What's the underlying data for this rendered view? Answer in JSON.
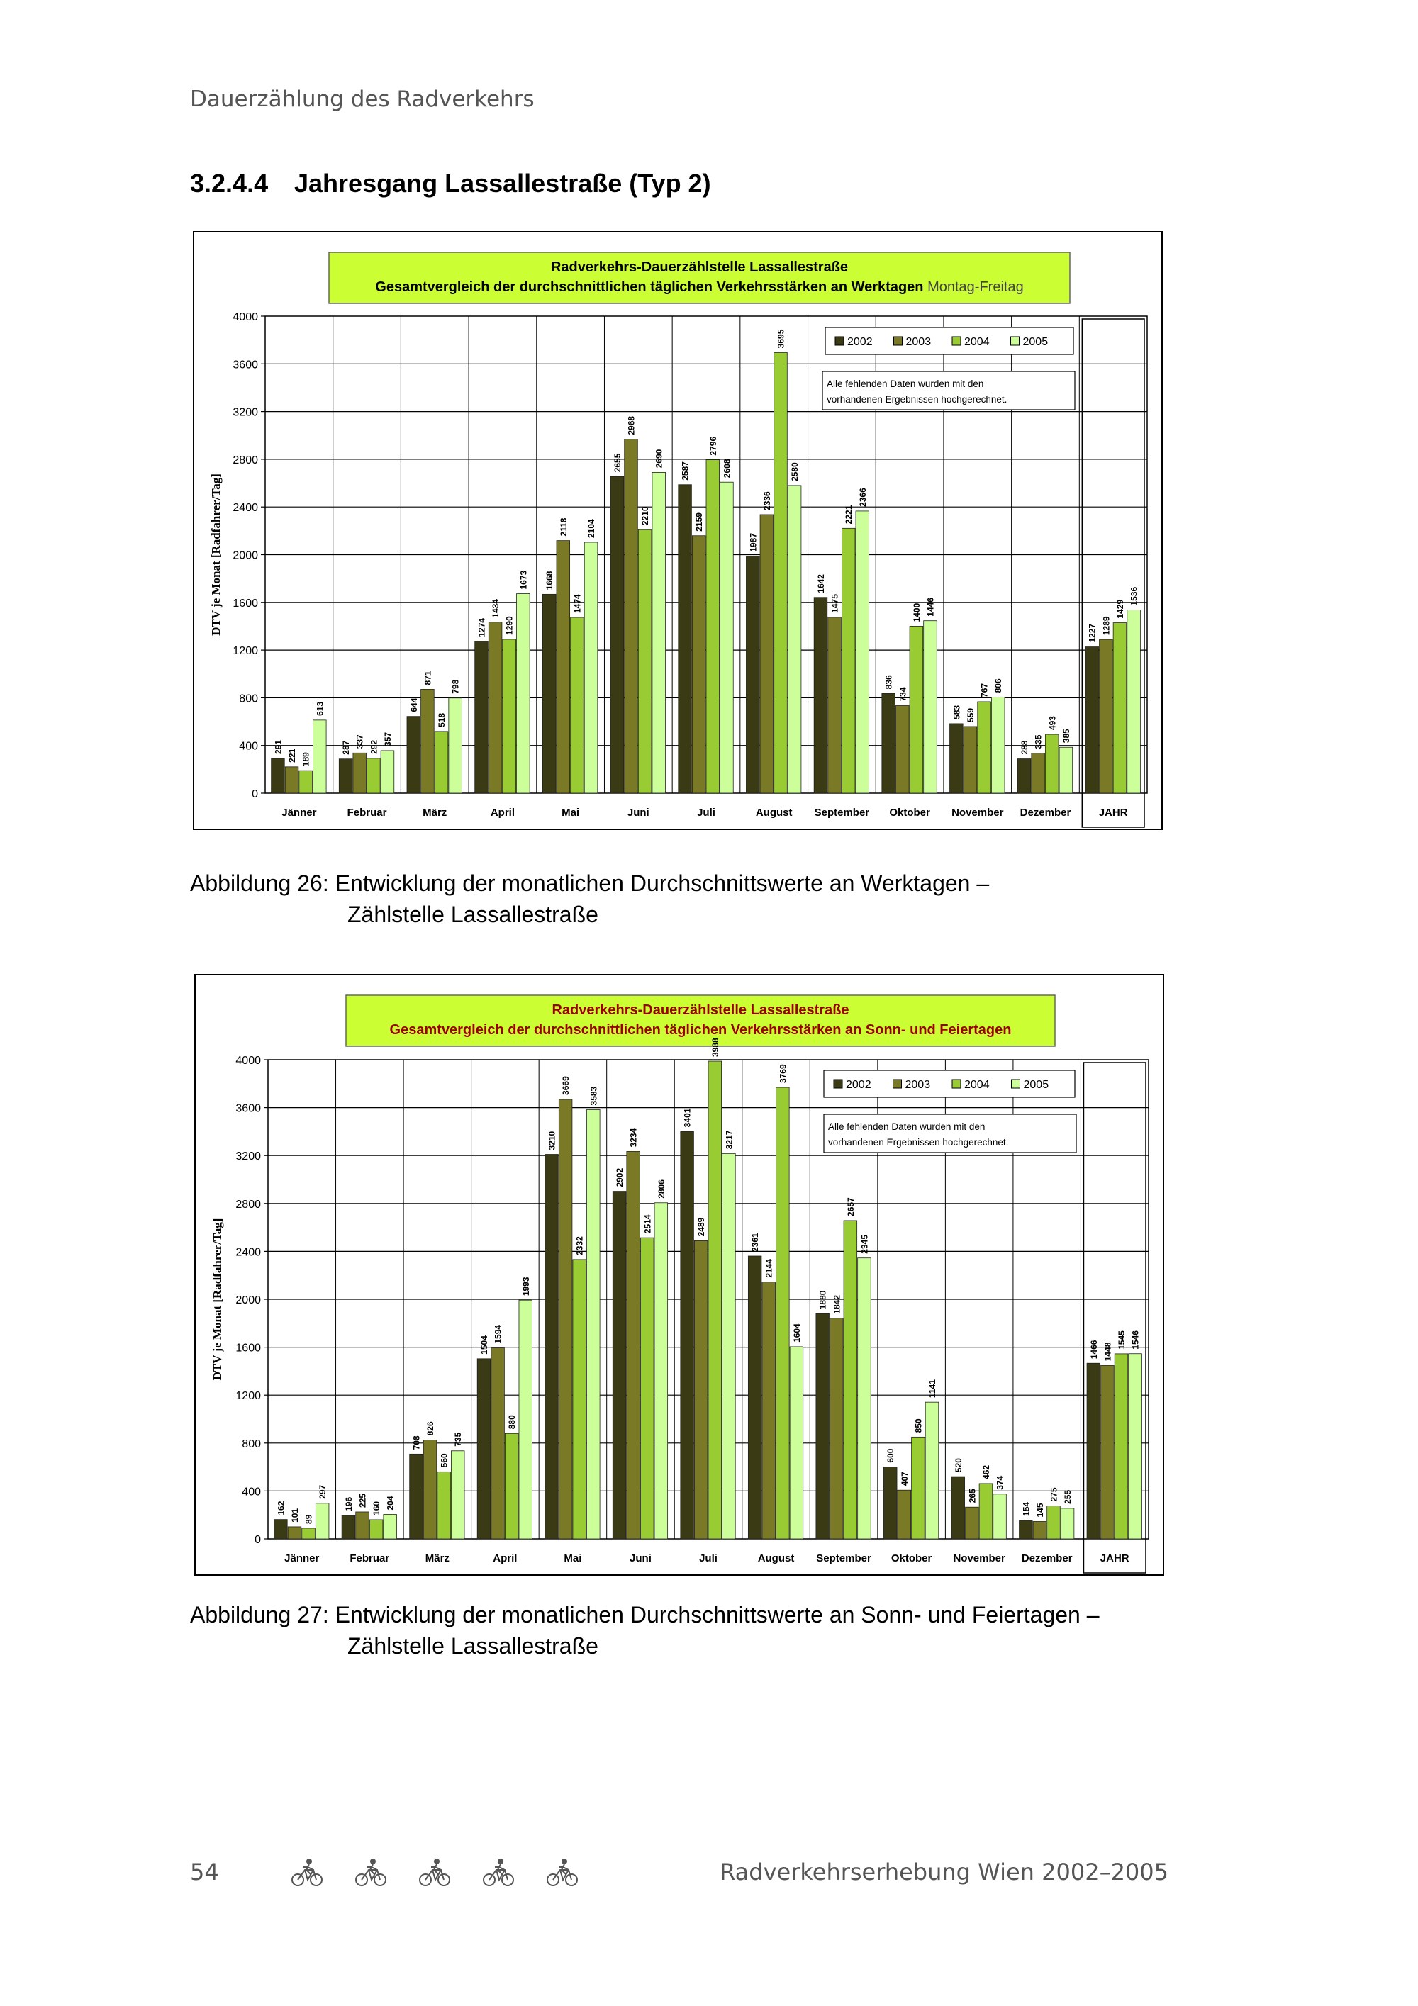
{
  "page": {
    "running_header": "Dauerzählung des Radverkehrs",
    "section_number": "3.2.4.4",
    "section_title": "Jahresgang Lassallestraße (Typ 2)",
    "page_number": "54",
    "footer_title": "Radverkehrserhebung Wien 2002–2005",
    "footer_icon": "bicycle-icon"
  },
  "captions": [
    {
      "line1": "Abbildung 26: Entwicklung der monatlichen Durchschnittswerte an Werktagen –",
      "line2": "Zählstelle Lassallestraße"
    },
    {
      "line1": "Abbildung 27: Entwicklung der monatlichen Durchschnittswerte an Sonn- und Feiertagen –",
      "line2": "Zählstelle Lassallestraße"
    }
  ],
  "colors": {
    "s2002": "#3a3a14",
    "s2003": "#7a7a26",
    "s2004": "#99cc33",
    "s2005": "#ccff99",
    "title_box": "#ccff33",
    "title_text_1": "#000000",
    "title_text_2": "#990000"
  },
  "chart_data": [
    {
      "type": "bar",
      "title": "Radverkehrs-Dauerzählstelle Lassallestraße",
      "subtitle": "Gesamtvergleich der durchschnittlichen täglichen Verkehrsstärken an Werktagen",
      "subtitle_suffix": "Montag-Freitag",
      "ylabel": "DTV je Monat  [Radfahrer/Tag]",
      "ylim": [
        0,
        4000
      ],
      "yticks": [
        0,
        400,
        800,
        1200,
        1600,
        2000,
        2400,
        2800,
        3200,
        3600,
        4000
      ],
      "grid": true,
      "legend_position": "top-right",
      "note": "Alle fehlenden Daten wurden mit den vorhandenen Ergebnissen hochgerechnet.",
      "categories": [
        "Jänner",
        "Februar",
        "März",
        "April",
        "Mai",
        "Juni",
        "Juli",
        "August",
        "September",
        "Oktober",
        "November",
        "Dezember",
        "JAHR"
      ],
      "series": [
        {
          "name": "2002",
          "values": [
            291,
            287,
            644,
            1274,
            1668,
            2655,
            2587,
            1987,
            1642,
            836,
            583,
            288,
            1227
          ]
        },
        {
          "name": "2003",
          "values": [
            221,
            337,
            871,
            1434,
            2118,
            2968,
            2159,
            2336,
            1475,
            734,
            559,
            335,
            1289
          ]
        },
        {
          "name": "2004",
          "values": [
            189,
            292,
            518,
            1290,
            1474,
            2210,
            2796,
            3695,
            2221,
            1400,
            767,
            493,
            1429
          ]
        },
        {
          "name": "2005",
          "values": [
            613,
            357,
            798,
            1673,
            2104,
            2690,
            2608,
            2580,
            2366,
            1446,
            806,
            385,
            1536
          ]
        }
      ]
    },
    {
      "type": "bar",
      "title": "Radverkehrs-Dauerzählstelle Lassallestraße",
      "subtitle": "Gesamtvergleich der durchschnittlichen täglichen Verkehrsstärken an Sonn- und Feiertagen",
      "subtitle_suffix": "",
      "ylabel": "DTV je Monat  [Radfahrer/Tag]",
      "ylim": [
        0,
        4000
      ],
      "yticks": [
        0,
        400,
        800,
        1200,
        1600,
        2000,
        2400,
        2800,
        3200,
        3600,
        4000
      ],
      "grid": true,
      "legend_position": "top-right",
      "note": "Alle fehlenden Daten wurden mit den vorhandenen Ergebnissen hochgerechnet.",
      "categories": [
        "Jänner",
        "Februar",
        "März",
        "April",
        "Mai",
        "Juni",
        "Juli",
        "August",
        "September",
        "Oktober",
        "November",
        "Dezember",
        "JAHR"
      ],
      "series": [
        {
          "name": "2002",
          "values": [
            162,
            196,
            708,
            1504,
            3210,
            2902,
            3401,
            2361,
            1880,
            600,
            520,
            154,
            1466
          ]
        },
        {
          "name": "2003",
          "values": [
            101,
            225,
            826,
            1594,
            3669,
            3234,
            2489,
            2144,
            1842,
            407,
            265,
            145,
            1448
          ]
        },
        {
          "name": "2004",
          "values": [
            89,
            160,
            560,
            880,
            2332,
            2514,
            3988,
            3769,
            2657,
            850,
            462,
            275,
            1545
          ]
        },
        {
          "name": "2005",
          "values": [
            297,
            204,
            735,
            1993,
            3583,
            2806,
            3217,
            1604,
            2345,
            1141,
            374,
            255,
            1546
          ]
        }
      ]
    }
  ]
}
